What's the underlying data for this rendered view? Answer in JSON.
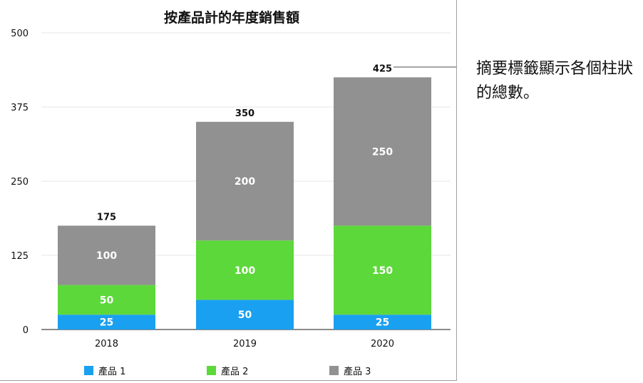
{
  "chart_data": {
    "type": "bar",
    "stacked": true,
    "title": "按產品計的年度銷售額",
    "categories": [
      "2018",
      "2019",
      "2020"
    ],
    "series": [
      {
        "name": "產品 1",
        "values": [
          25,
          50,
          25
        ],
        "color": "#1aa0f0"
      },
      {
        "name": "產品 2",
        "values": [
          50,
          100,
          150
        ],
        "color": "#5dd83b"
      },
      {
        "name": "產品 3",
        "values": [
          100,
          200,
          250
        ],
        "color": "#919191"
      }
    ],
    "totals": [
      175,
      350,
      425
    ],
    "yticks": [
      0,
      125,
      250,
      375,
      500
    ],
    "ylim": [
      0,
      500
    ],
    "grid": true,
    "legend": "bottom",
    "xlabel": "",
    "ylabel": ""
  },
  "annotation": "摘要標籤顯示各個柱狀的總數。"
}
